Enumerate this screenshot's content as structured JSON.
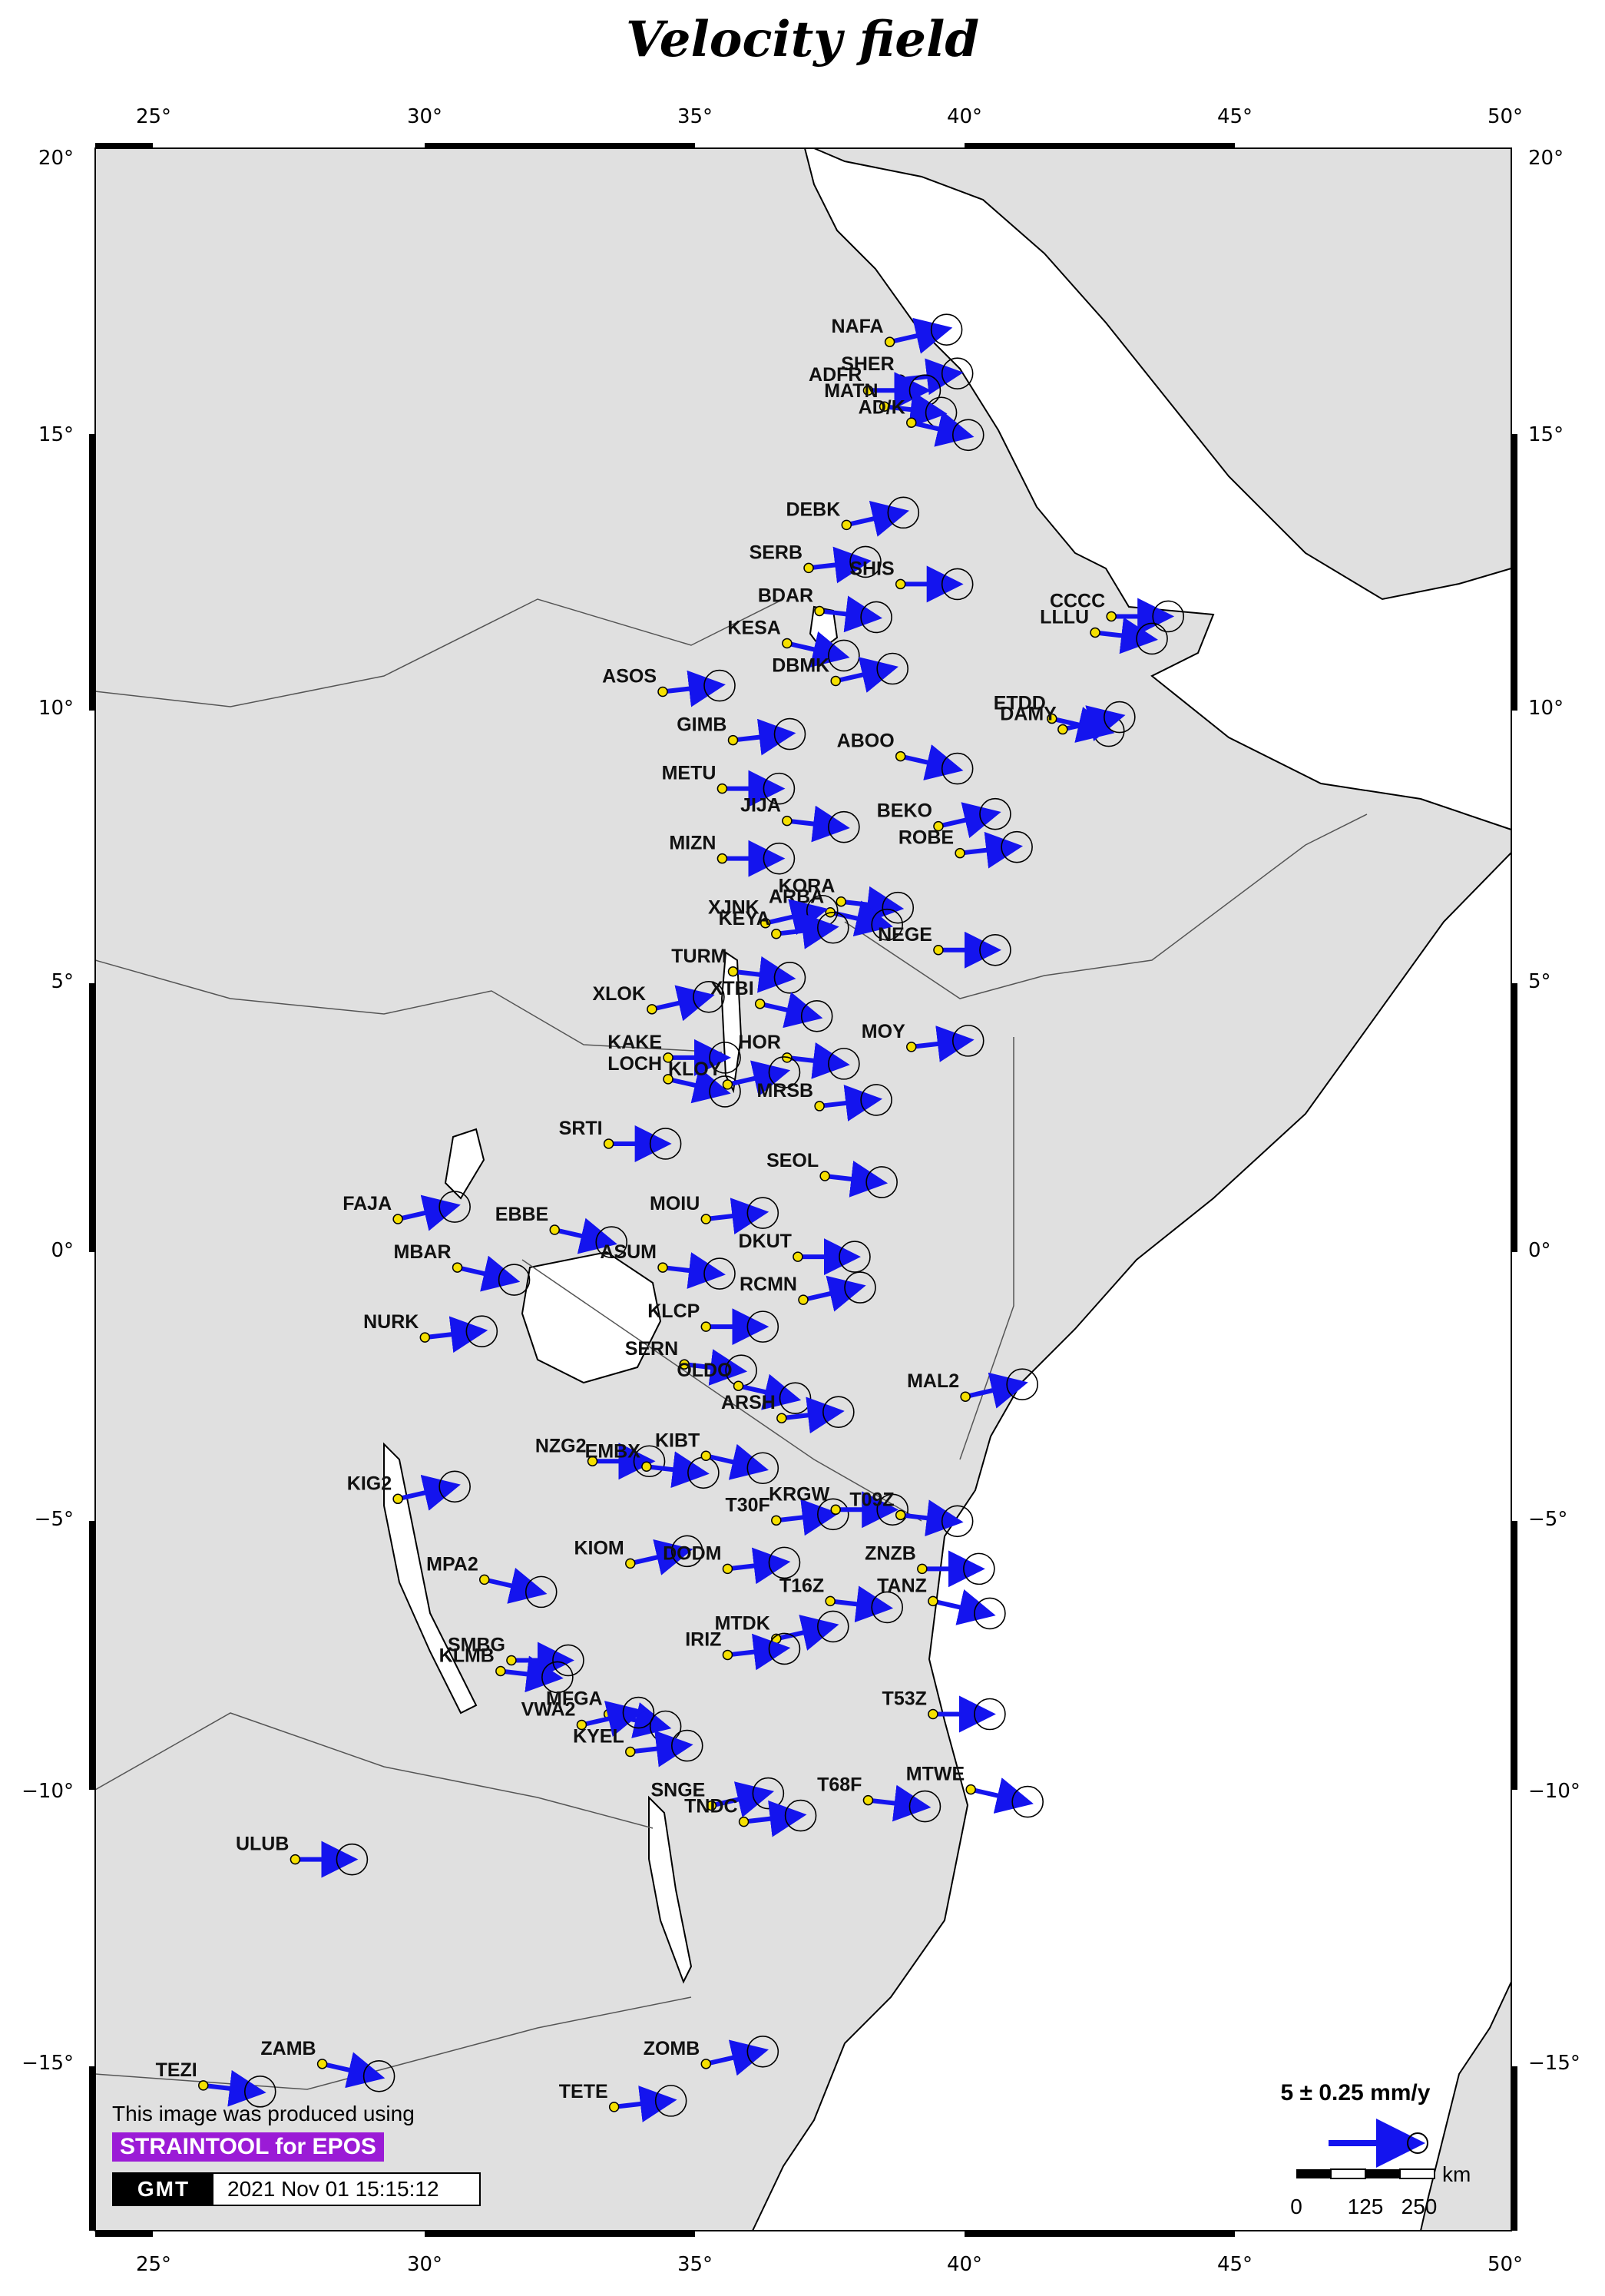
{
  "title": "Velocity field",
  "axes": {
    "lon_labels": [
      "25°",
      "30°",
      "35°",
      "40°",
      "45°",
      "50°"
    ],
    "lat_labels": [
      "20°",
      "15°",
      "10°",
      "5°",
      "0°",
      "−5°",
      "−10°",
      "−15°"
    ],
    "lon_range": [
      24,
      50.2
    ],
    "lat_range": [
      -18.5,
      20.2
    ]
  },
  "legend": {
    "velocity_label": "5 ± 0.25 mm/y",
    "scale_unit": "km",
    "scale_ticks": [
      "0",
      "125",
      "250"
    ]
  },
  "credits": {
    "produced_text": "This image was produced using",
    "tool_badge": "STRAINTOOL for EPOS",
    "gmt_logo": "GMT",
    "timestamp": "2021 Nov 01 15:15:12"
  },
  "colors": {
    "land": "#e0e0e0",
    "sea": "#ffffff",
    "arrow": "#1414ee",
    "station": "#f5e000",
    "ellipse": "#000000"
  },
  "stations": [
    {
      "name": "NAFA",
      "lon": 38.7,
      "lat": 16.6
    },
    {
      "name": "SHER",
      "lon": 38.9,
      "lat": 15.9
    },
    {
      "name": "ADFR",
      "lon": 38.3,
      "lat": 15.7
    },
    {
      "name": "MATN",
      "lon": 38.6,
      "lat": 15.4
    },
    {
      "name": "AD/K",
      "lon": 39.1,
      "lat": 15.1
    },
    {
      "name": "DEBK",
      "lon": 37.9,
      "lat": 13.2
    },
    {
      "name": "SERB",
      "lon": 37.2,
      "lat": 12.4
    },
    {
      "name": "SHIS",
      "lon": 38.9,
      "lat": 12.1
    },
    {
      "name": "BDAR",
      "lon": 37.4,
      "lat": 11.6
    },
    {
      "name": "KESA",
      "lon": 36.8,
      "lat": 11.0
    },
    {
      "name": "DBMK",
      "lon": 37.7,
      "lat": 10.3
    },
    {
      "name": "ASOS",
      "lon": 34.5,
      "lat": 10.1
    },
    {
      "name": "CCCC",
      "lon": 42.8,
      "lat": 11.5
    },
    {
      "name": "LLLU",
      "lon": 42.5,
      "lat": 11.2
    },
    {
      "name": "ETDD",
      "lon": 41.7,
      "lat": 9.6
    },
    {
      "name": "DAMY",
      "lon": 41.9,
      "lat": 9.4
    },
    {
      "name": "GIMB",
      "lon": 35.8,
      "lat": 9.2
    },
    {
      "name": "METU",
      "lon": 35.6,
      "lat": 8.3
    },
    {
      "name": "JIJA",
      "lon": 36.8,
      "lat": 7.7
    },
    {
      "name": "ABOO",
      "lon": 38.9,
      "lat": 8.9
    },
    {
      "name": "BEKO",
      "lon": 39.6,
      "lat": 7.6
    },
    {
      "name": "ROBE",
      "lon": 40.0,
      "lat": 7.1
    },
    {
      "name": "MIZN",
      "lon": 35.6,
      "lat": 7.0
    },
    {
      "name": "KORA",
      "lon": 37.8,
      "lat": 6.2
    },
    {
      "name": "ARBA",
      "lon": 37.6,
      "lat": 6.0
    },
    {
      "name": "XJNK",
      "lon": 36.4,
      "lat": 5.8
    },
    {
      "name": "KEYA",
      "lon": 36.6,
      "lat": 5.6
    },
    {
      "name": "NEGE",
      "lon": 39.6,
      "lat": 5.3
    },
    {
      "name": "TURM",
      "lon": 35.8,
      "lat": 4.9
    },
    {
      "name": "XTBI",
      "lon": 36.3,
      "lat": 4.3
    },
    {
      "name": "XLOK",
      "lon": 34.3,
      "lat": 4.2
    },
    {
      "name": "MOY",
      "lon": 39.1,
      "lat": 3.5
    },
    {
      "name": "KAKE",
      "lon": 34.6,
      "lat": 3.3
    },
    {
      "name": "HOR",
      "lon": 36.8,
      "lat": 3.3
    },
    {
      "name": "LOCH",
      "lon": 34.6,
      "lat": 2.9
    },
    {
      "name": "KLOY",
      "lon": 35.7,
      "lat": 2.8
    },
    {
      "name": "MRSB",
      "lon": 37.4,
      "lat": 2.4
    },
    {
      "name": "SRTI",
      "lon": 33.5,
      "lat": 1.7
    },
    {
      "name": "SEOL",
      "lon": 37.5,
      "lat": 1.1
    },
    {
      "name": "EBBE",
      "lon": 32.5,
      "lat": 0.1
    },
    {
      "name": "FAJA",
      "lon": 29.6,
      "lat": 0.3
    },
    {
      "name": "MOIU",
      "lon": 35.3,
      "lat": 0.3
    },
    {
      "name": "DKUT",
      "lon": 37.0,
      "lat": -0.4
    },
    {
      "name": "ASUM",
      "lon": 34.5,
      "lat": -0.6
    },
    {
      "name": "MBAR",
      "lon": 30.7,
      "lat": -0.6
    },
    {
      "name": "RCMN",
      "lon": 37.1,
      "lat": -1.2
    },
    {
      "name": "NURK",
      "lon": 30.1,
      "lat": -1.9
    },
    {
      "name": "KLCP",
      "lon": 35.3,
      "lat": -1.7
    },
    {
      "name": "SERN",
      "lon": 34.9,
      "lat": -2.4
    },
    {
      "name": "OLDO",
      "lon": 35.9,
      "lat": -2.8
    },
    {
      "name": "MAL2",
      "lon": 40.1,
      "lat": -3.0
    },
    {
      "name": "ARSH",
      "lon": 36.7,
      "lat": -3.4
    },
    {
      "name": "NZG2",
      "lon": 33.2,
      "lat": -4.2
    },
    {
      "name": "EMBX",
      "lon": 34.2,
      "lat": -4.3
    },
    {
      "name": "KIBT",
      "lon": 35.3,
      "lat": -4.1
    },
    {
      "name": "KIG2",
      "lon": 29.6,
      "lat": -4.9
    },
    {
      "name": "T30F",
      "lon": 36.6,
      "lat": -5.3
    },
    {
      "name": "KRGW",
      "lon": 37.7,
      "lat": -5.1
    },
    {
      "name": "T09Z",
      "lon": 38.9,
      "lat": -5.2
    },
    {
      "name": "MPA2",
      "lon": 31.2,
      "lat": -6.4
    },
    {
      "name": "KIOM",
      "lon": 33.9,
      "lat": -6.1
    },
    {
      "name": "DODM",
      "lon": 35.7,
      "lat": -6.2
    },
    {
      "name": "ZNZB",
      "lon": 39.3,
      "lat": -6.2
    },
    {
      "name": "T16Z",
      "lon": 37.6,
      "lat": -6.8
    },
    {
      "name": "TANZ",
      "lon": 39.5,
      "lat": -6.8
    },
    {
      "name": "MTDK",
      "lon": 36.6,
      "lat": -7.5
    },
    {
      "name": "IRIZ",
      "lon": 35.7,
      "lat": -7.8
    },
    {
      "name": "SMBG",
      "lon": 31.7,
      "lat": -7.9
    },
    {
      "name": "KLMB",
      "lon": 31.5,
      "lat": -8.1
    },
    {
      "name": "MFGA",
      "lon": 33.5,
      "lat": -8.9
    },
    {
      "name": "VWA2",
      "lon": 33.0,
      "lat": -9.1
    },
    {
      "name": "KYEL",
      "lon": 33.9,
      "lat": -9.6
    },
    {
      "name": "T53Z",
      "lon": 39.5,
      "lat": -8.9
    },
    {
      "name": "T68F",
      "lon": 38.3,
      "lat": -10.5
    },
    {
      "name": "MTWE",
      "lon": 40.2,
      "lat": -10.3
    },
    {
      "name": "SNGE",
      "lon": 35.4,
      "lat": -10.6
    },
    {
      "name": "TNDC",
      "lon": 36.0,
      "lat": -10.9
    },
    {
      "name": "ULUB",
      "lon": 27.7,
      "lat": -11.6
    },
    {
      "name": "TEZI",
      "lon": 26.0,
      "lat": -15.8
    },
    {
      "name": "ZAMB",
      "lon": 28.2,
      "lat": -15.4
    },
    {
      "name": "ZOMB",
      "lon": 35.3,
      "lat": -15.4
    },
    {
      "name": "TETE",
      "lon": 33.6,
      "lat": -16.2
    }
  ]
}
